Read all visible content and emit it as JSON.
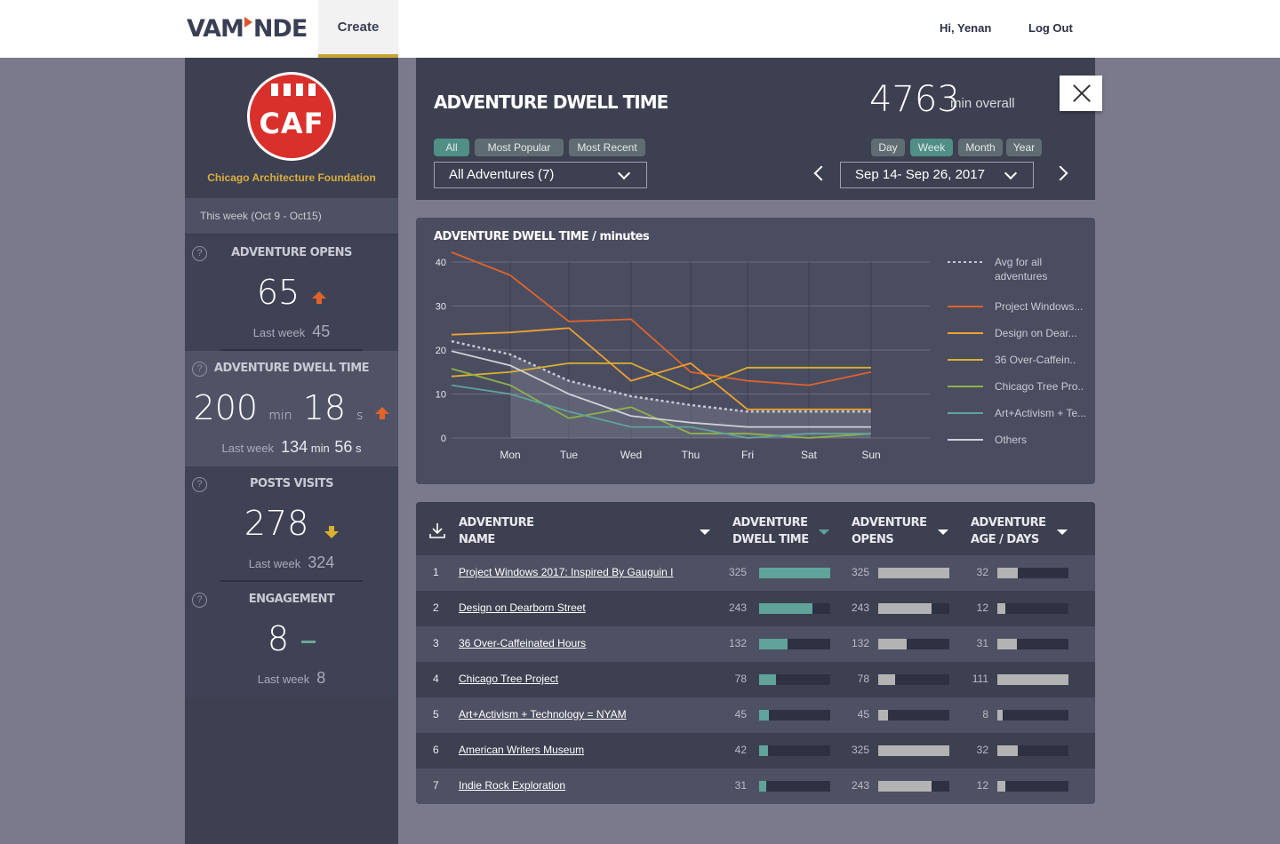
{
  "nav": {
    "logo": "VAMONDE",
    "create": "Create",
    "greeting": "Hi, Yenan",
    "logout": "Log Out"
  },
  "org": {
    "logo_text": "CAF",
    "name": "Chicago Architecture Foundation"
  },
  "sidebar": {
    "week": "This week (Oct 9 - Oct15)",
    "stats": [
      {
        "title": "ADVENTURE OPENS",
        "value": "65",
        "trend": "up",
        "last_label": "Last week",
        "last_value": "45"
      },
      {
        "title": "ADVENTURE DWELL TIME",
        "min": "200",
        "min_unit": "min",
        "sec": "18",
        "sec_unit": "s",
        "trend": "up",
        "last_label": "Last week",
        "last_min": "134",
        "last_min_unit": "min",
        "last_sec": "56",
        "last_sec_unit": "s"
      },
      {
        "title": "POSTS VISITS",
        "value": "278",
        "trend": "down",
        "last_label": "Last week",
        "last_value": "324"
      },
      {
        "title": "ENGAGEMENT",
        "value": "8",
        "trend": "flat",
        "last_label": "Last week",
        "last_value": "8"
      }
    ]
  },
  "header": {
    "title": "ADVENTURE DWELL TIME",
    "total": "4763",
    "total_label": "min overall",
    "filters": [
      "All",
      "Most Popular",
      "Most Recent"
    ],
    "periods": [
      "Day",
      "Week",
      "Month",
      "Year"
    ],
    "active_filter": "All",
    "active_period": "Week",
    "adventure_select": "All Adventures (7)",
    "date_range": "Sep 14- Sep 26, 2017"
  },
  "chart_data": {
    "type": "line",
    "title": "ADVENTURE DWELL TIME / minutes",
    "categories": [
      "Mon",
      "Tue",
      "Wed",
      "Thu",
      "Fri",
      "Sat",
      "Sun"
    ],
    "ylim": [
      0,
      40
    ],
    "yticks": [
      0,
      10,
      20,
      30,
      40
    ],
    "grid": true,
    "legend_position": "right",
    "series": [
      {
        "name": "Avg for all adventures",
        "color": "#c8c8d4",
        "dashed": true,
        "values": [
          19,
          13,
          9.5,
          7.5,
          6,
          6,
          6
        ]
      },
      {
        "name": "Project Windows...",
        "color": "#e0632a",
        "values": [
          37,
          26.5,
          27,
          15,
          13,
          12,
          15
        ]
      },
      {
        "name": "Design on Dear...",
        "color": "#f0a030",
        "values": [
          24,
          25,
          13,
          17,
          6.5,
          6.5,
          6.5
        ]
      },
      {
        "name": "36 Over-Caffein..",
        "color": "#d9b030",
        "values": [
          15,
          17,
          17,
          11,
          16,
          16,
          16
        ]
      },
      {
        "name": "Chicago Tree Pro..",
        "color": "#8fb04a",
        "values": [
          12,
          4.5,
          7,
          1,
          1,
          0,
          1
        ]
      },
      {
        "name": "Art+Activism + Te...",
        "color": "#5fa39a",
        "values": [
          10,
          6,
          2.5,
          2.5,
          0,
          1,
          1
        ]
      },
      {
        "name": "Others",
        "color": "#d0d0d8",
        "values": [
          16.5,
          10,
          5,
          3.5,
          2.5,
          2.5,
          2.5
        ]
      }
    ]
  },
  "table": {
    "headers": {
      "name": "ADVENTURE NAME",
      "dwell": "ADVENTURE DWELL TIME",
      "opens": "ADVENTURE OPENS",
      "age": "ADVENTURE AGE / DAYS"
    },
    "rows": [
      {
        "n": "1",
        "name": "Project Windows 2017: Inspired By Gauguin I",
        "dwell": 325,
        "opens": 325,
        "age": 32
      },
      {
        "n": "2",
        "name": "Design on Dearborn Street",
        "dwell": 243,
        "opens": 243,
        "age": 12
      },
      {
        "n": "3",
        "name": "36 Over-Caffeinated Hours",
        "dwell": 132,
        "opens": 132,
        "age": 31
      },
      {
        "n": "4",
        "name": "Chicago Tree Project",
        "dwell": 78,
        "opens": 78,
        "age": 111
      },
      {
        "n": "5",
        "name": "Art+Activism + Technology = NYAM",
        "dwell": 45,
        "opens": 45,
        "age": 8
      },
      {
        "n": "6",
        "name": "American Writers Museum",
        "dwell": 42,
        "opens": 325,
        "age": 32
      },
      {
        "n": "7",
        "name": "Indie Rock Exploration",
        "dwell": 31,
        "opens": 243,
        "age": 12
      }
    ]
  },
  "colors": {
    "accent": "#c7a23a",
    "teal": "#4f8f86",
    "bar_dwell": "#5fa39a",
    "bar_gray": "#b3b3b3"
  }
}
